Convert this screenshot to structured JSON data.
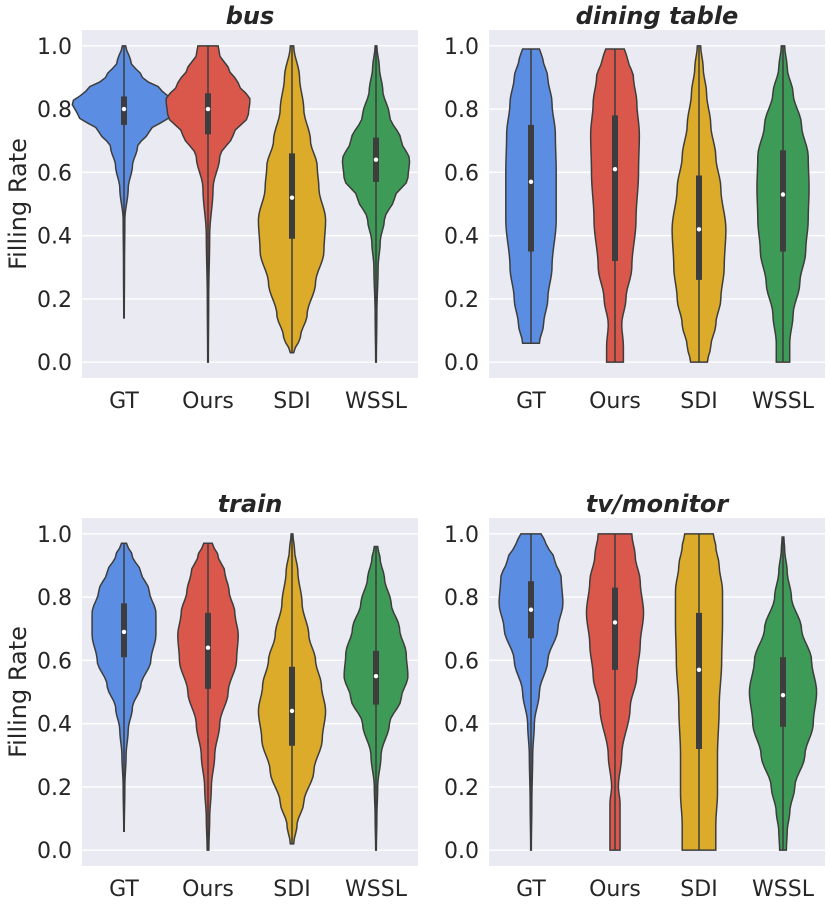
{
  "colors": {
    "GT": "#5b8de2",
    "Ours": "#d9584b",
    "SDI": "#dcab2a",
    "WSSL": "#3e9b57",
    "panel_background": "#eaeaf2",
    "grid": "#ffffff"
  },
  "chart_data": [
    {
      "type": "violin",
      "title": "bus",
      "ylabel": "Filling Rate",
      "categories": [
        "GT",
        "Ours",
        "SDI",
        "WSSL"
      ],
      "ylim": [
        -0.05,
        1.05
      ],
      "yticks": [
        "0.0",
        "0.2",
        "0.4",
        "0.6",
        "0.8",
        "1.0"
      ],
      "grid": true,
      "series": [
        {
          "category": "GT",
          "min": 0.14,
          "q1": 0.75,
          "median": 0.8,
          "q3": 0.84,
          "max": 1.0,
          "width_profile": [
            [
              0.14,
              0.003
            ],
            [
              0.3,
              0.006
            ],
            [
              0.45,
              0.01
            ],
            [
              0.55,
              0.05
            ],
            [
              0.62,
              0.1
            ],
            [
              0.68,
              0.16
            ],
            [
              0.73,
              0.3
            ],
            [
              0.78,
              0.55
            ],
            [
              0.82,
              0.62
            ],
            [
              0.86,
              0.45
            ],
            [
              0.9,
              0.22
            ],
            [
              0.95,
              0.08
            ],
            [
              1.0,
              0.02
            ]
          ]
        },
        {
          "category": "Ours",
          "min": 0.0,
          "q1": 0.72,
          "median": 0.8,
          "q3": 0.85,
          "max": 1.0,
          "width_profile": [
            [
              0.0,
              0.004
            ],
            [
              0.2,
              0.008
            ],
            [
              0.4,
              0.02
            ],
            [
              0.55,
              0.06
            ],
            [
              0.65,
              0.14
            ],
            [
              0.72,
              0.3
            ],
            [
              0.78,
              0.48
            ],
            [
              0.83,
              0.5
            ],
            [
              0.88,
              0.36
            ],
            [
              0.93,
              0.24
            ],
            [
              0.97,
              0.14
            ],
            [
              1.0,
              0.12
            ]
          ]
        },
        {
          "category": "SDI",
          "min": 0.03,
          "q1": 0.39,
          "median": 0.52,
          "q3": 0.66,
          "max": 1.0,
          "width_profile": [
            [
              0.03,
              0.02
            ],
            [
              0.08,
              0.1
            ],
            [
              0.15,
              0.18
            ],
            [
              0.25,
              0.28
            ],
            [
              0.35,
              0.38
            ],
            [
              0.45,
              0.4
            ],
            [
              0.55,
              0.32
            ],
            [
              0.62,
              0.3
            ],
            [
              0.7,
              0.22
            ],
            [
              0.8,
              0.14
            ],
            [
              0.9,
              0.09
            ],
            [
              1.0,
              0.02
            ]
          ]
        },
        {
          "category": "WSSL",
          "min": 0.0,
          "q1": 0.57,
          "median": 0.64,
          "q3": 0.71,
          "max": 1.0,
          "width_profile": [
            [
              0.0,
              0.004
            ],
            [
              0.15,
              0.01
            ],
            [
              0.3,
              0.025
            ],
            [
              0.38,
              0.05
            ],
            [
              0.45,
              0.1
            ],
            [
              0.52,
              0.22
            ],
            [
              0.58,
              0.38
            ],
            [
              0.64,
              0.4
            ],
            [
              0.7,
              0.3
            ],
            [
              0.78,
              0.16
            ],
            [
              0.86,
              0.08
            ],
            [
              0.93,
              0.04
            ],
            [
              1.0,
              0.01
            ]
          ]
        }
      ]
    },
    {
      "type": "violin",
      "title": "dining table",
      "categories": [
        "GT",
        "Ours",
        "SDI",
        "WSSL"
      ],
      "ylim": [
        -0.05,
        1.05
      ],
      "yticks": [
        "0.0",
        "0.2",
        "0.4",
        "0.6",
        "0.8",
        "1.0"
      ],
      "grid": true,
      "series": [
        {
          "category": "GT",
          "min": 0.06,
          "q1": 0.35,
          "median": 0.57,
          "q3": 0.75,
          "max": 0.99,
          "width_profile": [
            [
              0.06,
              0.1
            ],
            [
              0.12,
              0.15
            ],
            [
              0.2,
              0.2
            ],
            [
              0.3,
              0.25
            ],
            [
              0.45,
              0.3
            ],
            [
              0.6,
              0.3
            ],
            [
              0.72,
              0.29
            ],
            [
              0.82,
              0.25
            ],
            [
              0.9,
              0.2
            ],
            [
              0.96,
              0.14
            ],
            [
              0.99,
              0.1
            ]
          ]
        },
        {
          "category": "Ours",
          "min": 0.0,
          "q1": 0.32,
          "median": 0.61,
          "q3": 0.78,
          "max": 0.99,
          "width_profile": [
            [
              0.0,
              0.1
            ],
            [
              0.05,
              0.1
            ],
            [
              0.12,
              0.08
            ],
            [
              0.2,
              0.13
            ],
            [
              0.3,
              0.2
            ],
            [
              0.45,
              0.25
            ],
            [
              0.6,
              0.28
            ],
            [
              0.72,
              0.29
            ],
            [
              0.82,
              0.26
            ],
            [
              0.9,
              0.22
            ],
            [
              0.96,
              0.15
            ],
            [
              0.99,
              0.11
            ]
          ]
        },
        {
          "category": "SDI",
          "min": 0.0,
          "q1": 0.26,
          "median": 0.42,
          "q3": 0.59,
          "max": 1.0,
          "width_profile": [
            [
              0.0,
              0.1
            ],
            [
              0.05,
              0.14
            ],
            [
              0.12,
              0.2
            ],
            [
              0.2,
              0.26
            ],
            [
              0.3,
              0.3
            ],
            [
              0.42,
              0.32
            ],
            [
              0.55,
              0.26
            ],
            [
              0.65,
              0.2
            ],
            [
              0.75,
              0.14
            ],
            [
              0.85,
              0.09
            ],
            [
              0.93,
              0.05
            ],
            [
              1.0,
              0.02
            ]
          ]
        },
        {
          "category": "WSSL",
          "min": 0.0,
          "q1": 0.35,
          "median": 0.53,
          "q3": 0.67,
          "max": 1.0,
          "width_profile": [
            [
              0.0,
              0.08
            ],
            [
              0.06,
              0.08
            ],
            [
              0.15,
              0.12
            ],
            [
              0.25,
              0.2
            ],
            [
              0.35,
              0.27
            ],
            [
              0.45,
              0.3
            ],
            [
              0.55,
              0.31
            ],
            [
              0.65,
              0.3
            ],
            [
              0.75,
              0.22
            ],
            [
              0.85,
              0.12
            ],
            [
              0.93,
              0.05
            ],
            [
              1.0,
              0.02
            ]
          ]
        }
      ]
    },
    {
      "type": "violin",
      "title": "train",
      "ylabel": "Filling Rate",
      "categories": [
        "GT",
        "Ours",
        "SDI",
        "WSSL"
      ],
      "ylim": [
        -0.05,
        1.05
      ],
      "yticks": [
        "0.0",
        "0.2",
        "0.4",
        "0.6",
        "0.8",
        "1.0"
      ],
      "grid": true,
      "series": [
        {
          "category": "GT",
          "min": 0.06,
          "q1": 0.61,
          "median": 0.69,
          "q3": 0.78,
          "max": 0.97,
          "width_profile": [
            [
              0.06,
              0.003
            ],
            [
              0.2,
              0.01
            ],
            [
              0.3,
              0.025
            ],
            [
              0.38,
              0.05
            ],
            [
              0.45,
              0.1
            ],
            [
              0.52,
              0.2
            ],
            [
              0.6,
              0.32
            ],
            [
              0.68,
              0.38
            ],
            [
              0.75,
              0.38
            ],
            [
              0.82,
              0.3
            ],
            [
              0.88,
              0.2
            ],
            [
              0.93,
              0.1
            ],
            [
              0.97,
              0.03
            ]
          ]
        },
        {
          "category": "Ours",
          "min": 0.0,
          "q1": 0.51,
          "median": 0.64,
          "q3": 0.75,
          "max": 0.97,
          "width_profile": [
            [
              0.0,
              0.01
            ],
            [
              0.1,
              0.02
            ],
            [
              0.2,
              0.04
            ],
            [
              0.3,
              0.08
            ],
            [
              0.4,
              0.14
            ],
            [
              0.5,
              0.24
            ],
            [
              0.6,
              0.34
            ],
            [
              0.68,
              0.36
            ],
            [
              0.75,
              0.32
            ],
            [
              0.82,
              0.25
            ],
            [
              0.88,
              0.2
            ],
            [
              0.93,
              0.12
            ],
            [
              0.97,
              0.05
            ]
          ]
        },
        {
          "category": "SDI",
          "min": 0.02,
          "q1": 0.33,
          "median": 0.44,
          "q3": 0.58,
          "max": 1.0,
          "width_profile": [
            [
              0.02,
              0.02
            ],
            [
              0.08,
              0.06
            ],
            [
              0.15,
              0.14
            ],
            [
              0.25,
              0.26
            ],
            [
              0.35,
              0.36
            ],
            [
              0.44,
              0.4
            ],
            [
              0.52,
              0.35
            ],
            [
              0.6,
              0.28
            ],
            [
              0.68,
              0.2
            ],
            [
              0.78,
              0.12
            ],
            [
              0.88,
              0.07
            ],
            [
              0.95,
              0.03
            ],
            [
              1.0,
              0.01
            ]
          ]
        },
        {
          "category": "WSSL",
          "min": 0.0,
          "q1": 0.46,
          "median": 0.55,
          "q3": 0.63,
          "max": 0.96,
          "width_profile": [
            [
              0.0,
              0.004
            ],
            [
              0.1,
              0.01
            ],
            [
              0.2,
              0.02
            ],
            [
              0.3,
              0.06
            ],
            [
              0.4,
              0.16
            ],
            [
              0.48,
              0.3
            ],
            [
              0.55,
              0.38
            ],
            [
              0.62,
              0.36
            ],
            [
              0.7,
              0.28
            ],
            [
              0.78,
              0.18
            ],
            [
              0.86,
              0.1
            ],
            [
              0.92,
              0.05
            ],
            [
              0.96,
              0.02
            ]
          ]
        }
      ]
    },
    {
      "type": "violin",
      "title": "tv/monitor",
      "categories": [
        "GT",
        "Ours",
        "SDI",
        "WSSL"
      ],
      "ylim": [
        -0.05,
        1.05
      ],
      "yticks": [
        "0.0",
        "0.2",
        "0.4",
        "0.6",
        "0.8",
        "1.0"
      ],
      "grid": true,
      "series": [
        {
          "category": "GT",
          "min": 0.0,
          "q1": 0.67,
          "median": 0.76,
          "q3": 0.85,
          "max": 1.0,
          "width_profile": [
            [
              0.0,
              0.004
            ],
            [
              0.15,
              0.01
            ],
            [
              0.3,
              0.02
            ],
            [
              0.4,
              0.04
            ],
            [
              0.5,
              0.1
            ],
            [
              0.6,
              0.2
            ],
            [
              0.7,
              0.32
            ],
            [
              0.78,
              0.38
            ],
            [
              0.86,
              0.36
            ],
            [
              0.92,
              0.28
            ],
            [
              0.97,
              0.18
            ],
            [
              1.0,
              0.12
            ]
          ]
        },
        {
          "category": "Ours",
          "min": 0.0,
          "q1": 0.57,
          "median": 0.72,
          "q3": 0.83,
          "max": 1.0,
          "width_profile": [
            [
              0.0,
              0.06
            ],
            [
              0.08,
              0.06
            ],
            [
              0.15,
              0.06
            ],
            [
              0.2,
              0.04
            ],
            [
              0.3,
              0.08
            ],
            [
              0.45,
              0.18
            ],
            [
              0.55,
              0.26
            ],
            [
              0.65,
              0.3
            ],
            [
              0.75,
              0.34
            ],
            [
              0.85,
              0.3
            ],
            [
              0.93,
              0.24
            ],
            [
              1.0,
              0.2
            ]
          ]
        },
        {
          "category": "SDI",
          "min": 0.0,
          "q1": 0.32,
          "median": 0.57,
          "q3": 0.75,
          "max": 1.0,
          "width_profile": [
            [
              0.0,
              0.2
            ],
            [
              0.08,
              0.2
            ],
            [
              0.18,
              0.22
            ],
            [
              0.3,
              0.22
            ],
            [
              0.45,
              0.24
            ],
            [
              0.6,
              0.27
            ],
            [
              0.72,
              0.28
            ],
            [
              0.82,
              0.28
            ],
            [
              0.9,
              0.24
            ],
            [
              0.96,
              0.2
            ],
            [
              1.0,
              0.17
            ]
          ]
        },
        {
          "category": "WSSL",
          "min": 0.0,
          "q1": 0.39,
          "median": 0.49,
          "q3": 0.61,
          "max": 0.99,
          "width_profile": [
            [
              0.0,
              0.04
            ],
            [
              0.06,
              0.05
            ],
            [
              0.12,
              0.08
            ],
            [
              0.2,
              0.14
            ],
            [
              0.3,
              0.26
            ],
            [
              0.4,
              0.36
            ],
            [
              0.5,
              0.4
            ],
            [
              0.6,
              0.34
            ],
            [
              0.7,
              0.22
            ],
            [
              0.8,
              0.1
            ],
            [
              0.88,
              0.05
            ],
            [
              0.95,
              0.02
            ],
            [
              0.99,
              0.01
            ]
          ]
        }
      ]
    }
  ]
}
